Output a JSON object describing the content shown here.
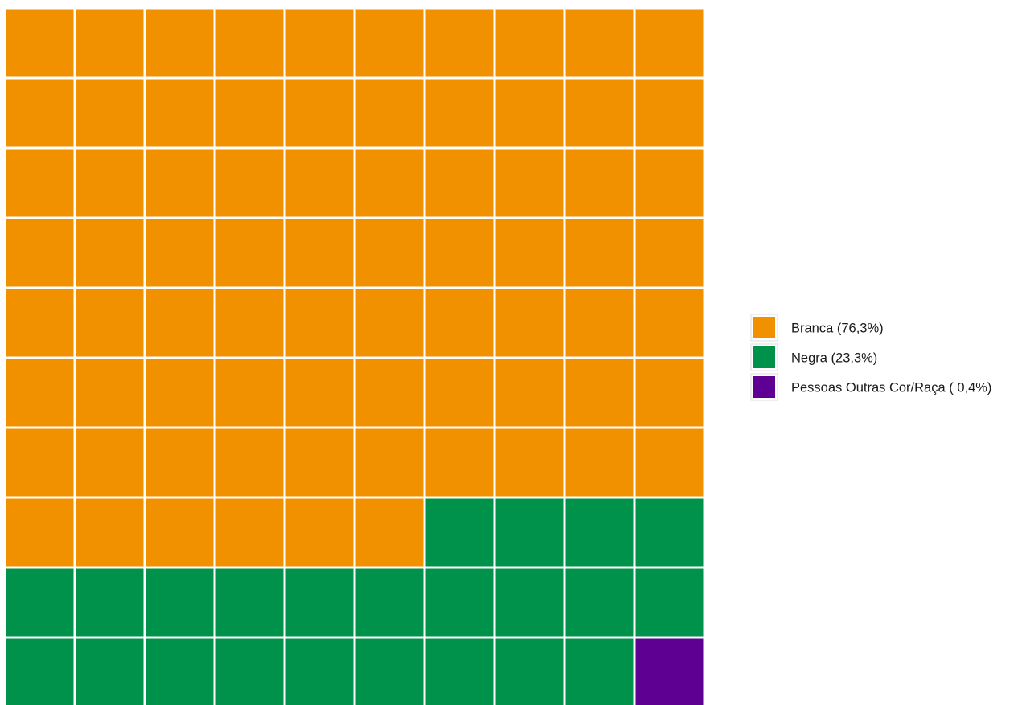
{
  "chart_data": {
    "type": "waffle",
    "title": "",
    "grid": {
      "rows": 10,
      "cols": 10
    },
    "categories": [
      {
        "name": "Branca",
        "label": "Branca (76,3%)",
        "percent": 76.3,
        "cells": 76,
        "color": "#F29100"
      },
      {
        "name": "Negra",
        "label": "Negra (23,3%)",
        "percent": 23.3,
        "cells": 23,
        "color": "#00924A"
      },
      {
        "name": "Pessoas Outras Cor/Raça",
        "label": "Pessoas Outras Cor/Raça ( 0,4%)",
        "percent": 0.4,
        "cells": 1,
        "color": "#5E0092"
      }
    ],
    "legend": {
      "position": "right"
    }
  }
}
